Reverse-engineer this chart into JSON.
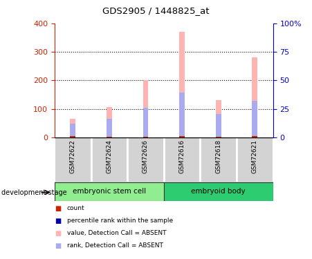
{
  "title": "GDS2905 / 1448825_at",
  "samples": [
    "GSM72622",
    "GSM72624",
    "GSM72626",
    "GSM72616",
    "GSM72618",
    "GSM72621"
  ],
  "group_labels": [
    "embryonic stem cell",
    "embryoid body"
  ],
  "group_colors": [
    "#90ee90",
    "#3cb371"
  ],
  "bar_width": 0.15,
  "value_absent": [
    65,
    105,
    200,
    370,
    130,
    280
  ],
  "rank_absent": [
    48,
    65,
    103,
    157,
    83,
    127
  ],
  "count_val": [
    5,
    3,
    3,
    5,
    3,
    4
  ],
  "left_ylim": [
    0,
    400
  ],
  "right_ylim": [
    0,
    100
  ],
  "left_yticks": [
    0,
    100,
    200,
    300,
    400
  ],
  "right_yticks": [
    0,
    25,
    50,
    75,
    100
  ],
  "right_yticklabels": [
    "0",
    "25",
    "50",
    "75",
    "100%"
  ],
  "left_color": "#cc2200",
  "right_color": "#0000cc",
  "bar_color_absent_value": "#ffb3b3",
  "bar_color_absent_rank": "#aaaaee",
  "bar_color_count": "#cc2200",
  "bg_color": "#d3d3d3",
  "legend_items": [
    {
      "label": "count",
      "color": "#cc2200"
    },
    {
      "label": "percentile rank within the sample",
      "color": "#0000aa"
    },
    {
      "label": "value, Detection Call = ABSENT",
      "color": "#ffb3b3"
    },
    {
      "label": "rank, Detection Call = ABSENT",
      "color": "#aaaaee"
    }
  ]
}
